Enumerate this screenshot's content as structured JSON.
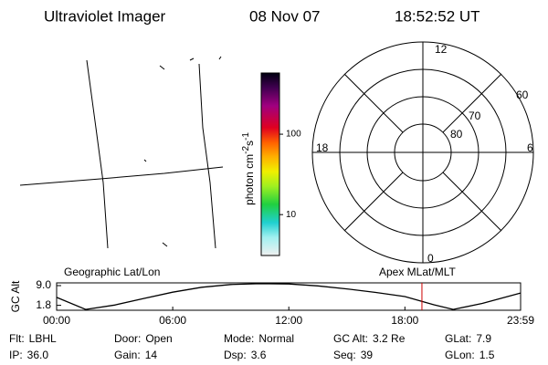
{
  "header": {
    "title": "Ultraviolet Imager",
    "date": "08 Nov 07",
    "time": "18:52:52 UT"
  },
  "colorbar": {
    "label_base": "photon cm",
    "label_exp1": "-2",
    "label_mid": "s",
    "label_exp2": "-1",
    "log": true,
    "lim": [
      3.1,
      577
    ],
    "ticks": [
      10,
      100
    ]
  },
  "polar": {
    "clock": [
      "12",
      "18",
      "6",
      "0"
    ],
    "rings": [
      "60",
      "70",
      "80"
    ]
  },
  "chart_data": {
    "type": "line",
    "left_label": "Geographic Lat/Lon",
    "right_label": "Apex MLat/MLT",
    "ylabel": "GC Alt",
    "x": [
      0,
      1.5,
      3,
      4.5,
      6,
      7.5,
      9,
      10.5,
      12,
      13.5,
      15,
      16.5,
      18,
      19.5,
      20.5,
      22,
      23.98
    ],
    "series": [
      {
        "color": "#000000",
        "values": [
          4.7,
          0.3,
          1.9,
          4.3,
          6.6,
          8.4,
          9.4,
          9.7,
          9.6,
          8.9,
          7.8,
          6.5,
          5.0,
          2.0,
          0.3,
          2.5,
          6.3
        ]
      }
    ],
    "cursor": 18.88,
    "cursor_color": "#cc0000",
    "xlim": [
      0,
      23.98
    ],
    "ylim": [
      0,
      10
    ],
    "xticks": [
      {
        "value": 0,
        "label": "00:00"
      },
      {
        "value": 6,
        "label": "06:00"
      },
      {
        "value": 12,
        "label": "12:00"
      },
      {
        "value": 18,
        "label": "18:00"
      },
      {
        "value": 23.98,
        "label": "23:59"
      }
    ],
    "yticks": [
      {
        "value": 9.0,
        "label": "9.0"
      },
      {
        "value": 1.8,
        "label": "1.8"
      }
    ]
  },
  "footer": {
    "rows": [
      [
        {
          "label": "Flt:",
          "value": "LBHL"
        },
        {
          "label": "Door:",
          "value": "Open"
        },
        {
          "label": "Mode:",
          "value": "Normal"
        },
        {
          "label": "GC Alt:",
          "value": "3.2 Re"
        },
        {
          "label": "GLat:",
          "value": "7.9"
        }
      ],
      [
        {
          "label": "IP:",
          "value": "36.0"
        },
        {
          "label": "Gain:",
          "value": "14"
        },
        {
          "label": "Dsp:",
          "value": "3.6"
        },
        {
          "label": "Seq:",
          "value": "39"
        },
        {
          "label": "GLon:",
          "value": "1.5"
        }
      ]
    ]
  }
}
